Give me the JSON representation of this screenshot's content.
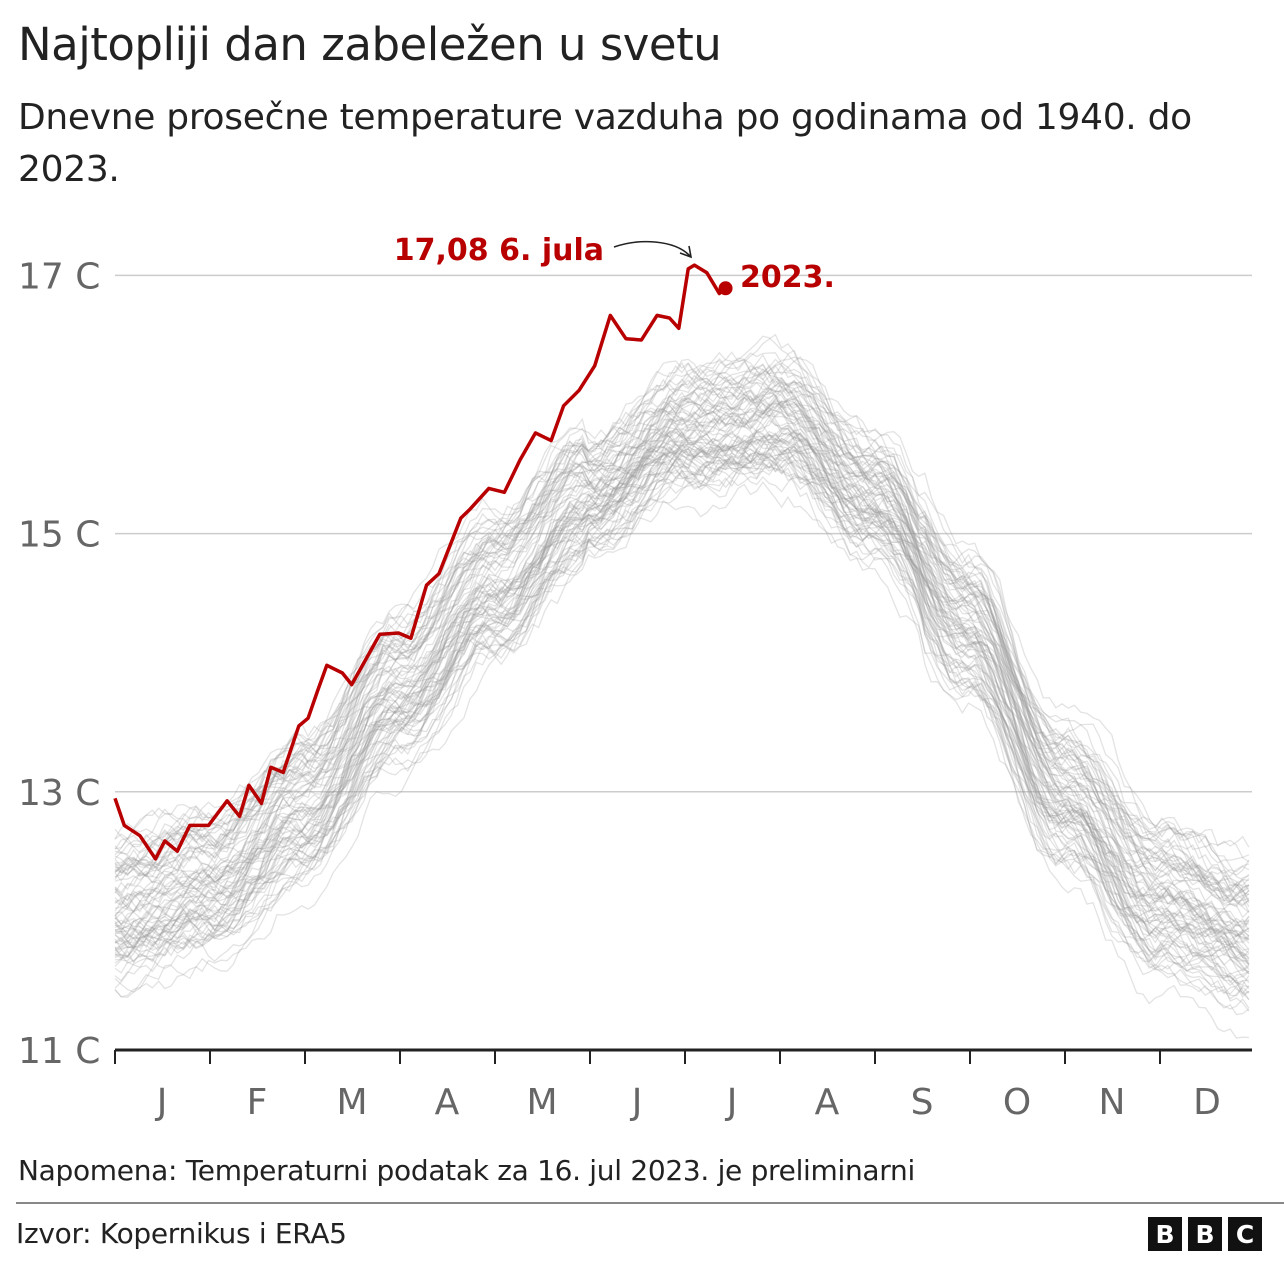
{
  "header": {
    "title": "Najtopliji dan zabeležen u svetu",
    "subtitle": "Dnevne prosečne temperature vazduha po godinama od 1940. do 2023."
  },
  "footer": {
    "note": "Napomena: Temperaturni podatak za 16. jul 2023. je preliminarni",
    "source": "Izvor: Kopernikus i ERA5",
    "logo": [
      "B",
      "B",
      "C"
    ]
  },
  "chart_data": {
    "type": "line",
    "ylim": [
      11,
      17.3
    ],
    "yticks": [
      {
        "value": 11,
        "label": "11 C"
      },
      {
        "value": 13,
        "label": "13 C"
      },
      {
        "value": 15,
        "label": "15 C"
      },
      {
        "value": 17,
        "label": "17 C"
      }
    ],
    "xticks": [
      "J",
      "F",
      "M",
      "A",
      "M",
      "J",
      "J",
      "A",
      "S",
      "O",
      "N",
      "D"
    ],
    "grid": true,
    "colors": {
      "highlight": "#b80000",
      "background_lines": "#999999",
      "grid": "#cccccc"
    },
    "highlight_series": {
      "name": "2023.",
      "x_day_of_year": [
        0,
        3,
        8,
        13,
        16,
        20,
        24,
        30,
        36,
        40,
        43,
        47,
        50,
        54,
        59,
        62,
        65,
        68,
        73,
        76,
        82,
        85,
        91,
        95,
        100,
        104,
        111,
        114,
        120,
        125,
        130,
        135,
        140,
        144,
        149,
        154,
        159,
        164,
        169,
        174,
        178,
        181,
        184,
        186,
        190,
        194,
        196
      ],
      "values": [
        12.95,
        12.74,
        12.66,
        12.48,
        12.62,
        12.54,
        12.74,
        12.74,
        12.93,
        12.81,
        13.05,
        12.91,
        13.19,
        13.15,
        13.51,
        13.57,
        13.78,
        13.98,
        13.92,
        13.83,
        14.09,
        14.22,
        14.23,
        14.19,
        14.6,
        14.69,
        15.12,
        15.19,
        15.35,
        15.32,
        15.57,
        15.78,
        15.72,
        15.99,
        16.11,
        16.3,
        16.69,
        16.51,
        16.5,
        16.69,
        16.67,
        16.59,
        17.05,
        17.08,
        17.02,
        16.86,
        16.9
      ]
    },
    "background_series": {
      "years": "1940–2022",
      "monthly_typical": [
        12.1,
        12.3,
        12.9,
        13.8,
        14.6,
        15.3,
        15.8,
        15.9,
        15.3,
        14.3,
        13.0,
        12.2,
        11.9
      ]
    },
    "annotation": {
      "label": "17,08 6. jula",
      "value": 17.08,
      "day": 186
    }
  }
}
